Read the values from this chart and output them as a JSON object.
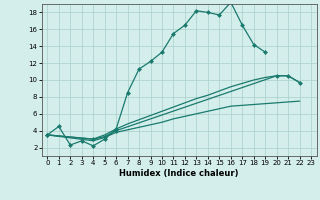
{
  "xlabel": "Humidex (Indice chaleur)",
  "xlim": [
    -0.5,
    23.5
  ],
  "ylim": [
    1,
    19
  ],
  "xticks": [
    0,
    1,
    2,
    3,
    4,
    5,
    6,
    7,
    8,
    9,
    10,
    11,
    12,
    13,
    14,
    15,
    16,
    17,
    18,
    19,
    20,
    21,
    22,
    23
  ],
  "yticks": [
    2,
    4,
    6,
    8,
    10,
    12,
    14,
    16,
    18
  ],
  "bg_color": "#d4eeec",
  "grid_color": "#aacfcc",
  "line_color": "#1a7a6e",
  "line1_x": [
    0,
    1,
    2,
    3,
    4,
    5,
    6,
    7,
    8,
    9,
    10,
    11,
    12,
    13,
    14,
    15,
    16,
    17,
    18,
    19
  ],
  "line1_y": [
    3.5,
    4.5,
    2.3,
    2.8,
    2.2,
    3.0,
    4.2,
    8.5,
    11.3,
    12.2,
    13.3,
    15.5,
    16.5,
    18.2,
    18.0,
    17.7,
    19.2,
    16.5,
    14.2,
    13.3
  ],
  "line2_x": [
    0,
    4,
    5,
    6,
    20,
    21,
    22
  ],
  "line2_y": [
    3.5,
    3.0,
    3.3,
    4.0,
    10.5,
    10.5,
    9.7
  ],
  "line3_x": [
    0,
    4,
    5,
    6,
    7,
    8,
    9,
    10,
    11,
    12,
    13,
    14,
    15,
    16,
    17,
    18,
    19,
    20,
    21,
    22
  ],
  "line3_y": [
    3.5,
    3.0,
    3.5,
    4.2,
    4.8,
    5.3,
    5.8,
    6.3,
    6.8,
    7.3,
    7.8,
    8.2,
    8.7,
    9.2,
    9.6,
    10.0,
    10.3,
    10.5,
    10.5,
    9.7
  ],
  "line4_x": [
    0,
    4,
    5,
    6,
    7,
    8,
    9,
    10,
    11,
    12,
    13,
    14,
    15,
    16,
    17,
    18,
    19,
    20,
    21,
    22
  ],
  "line4_y": [
    3.5,
    2.8,
    3.2,
    3.8,
    4.1,
    4.4,
    4.7,
    5.0,
    5.4,
    5.7,
    6.0,
    6.3,
    6.6,
    6.9,
    7.0,
    7.1,
    7.2,
    7.3,
    7.4,
    7.5
  ]
}
